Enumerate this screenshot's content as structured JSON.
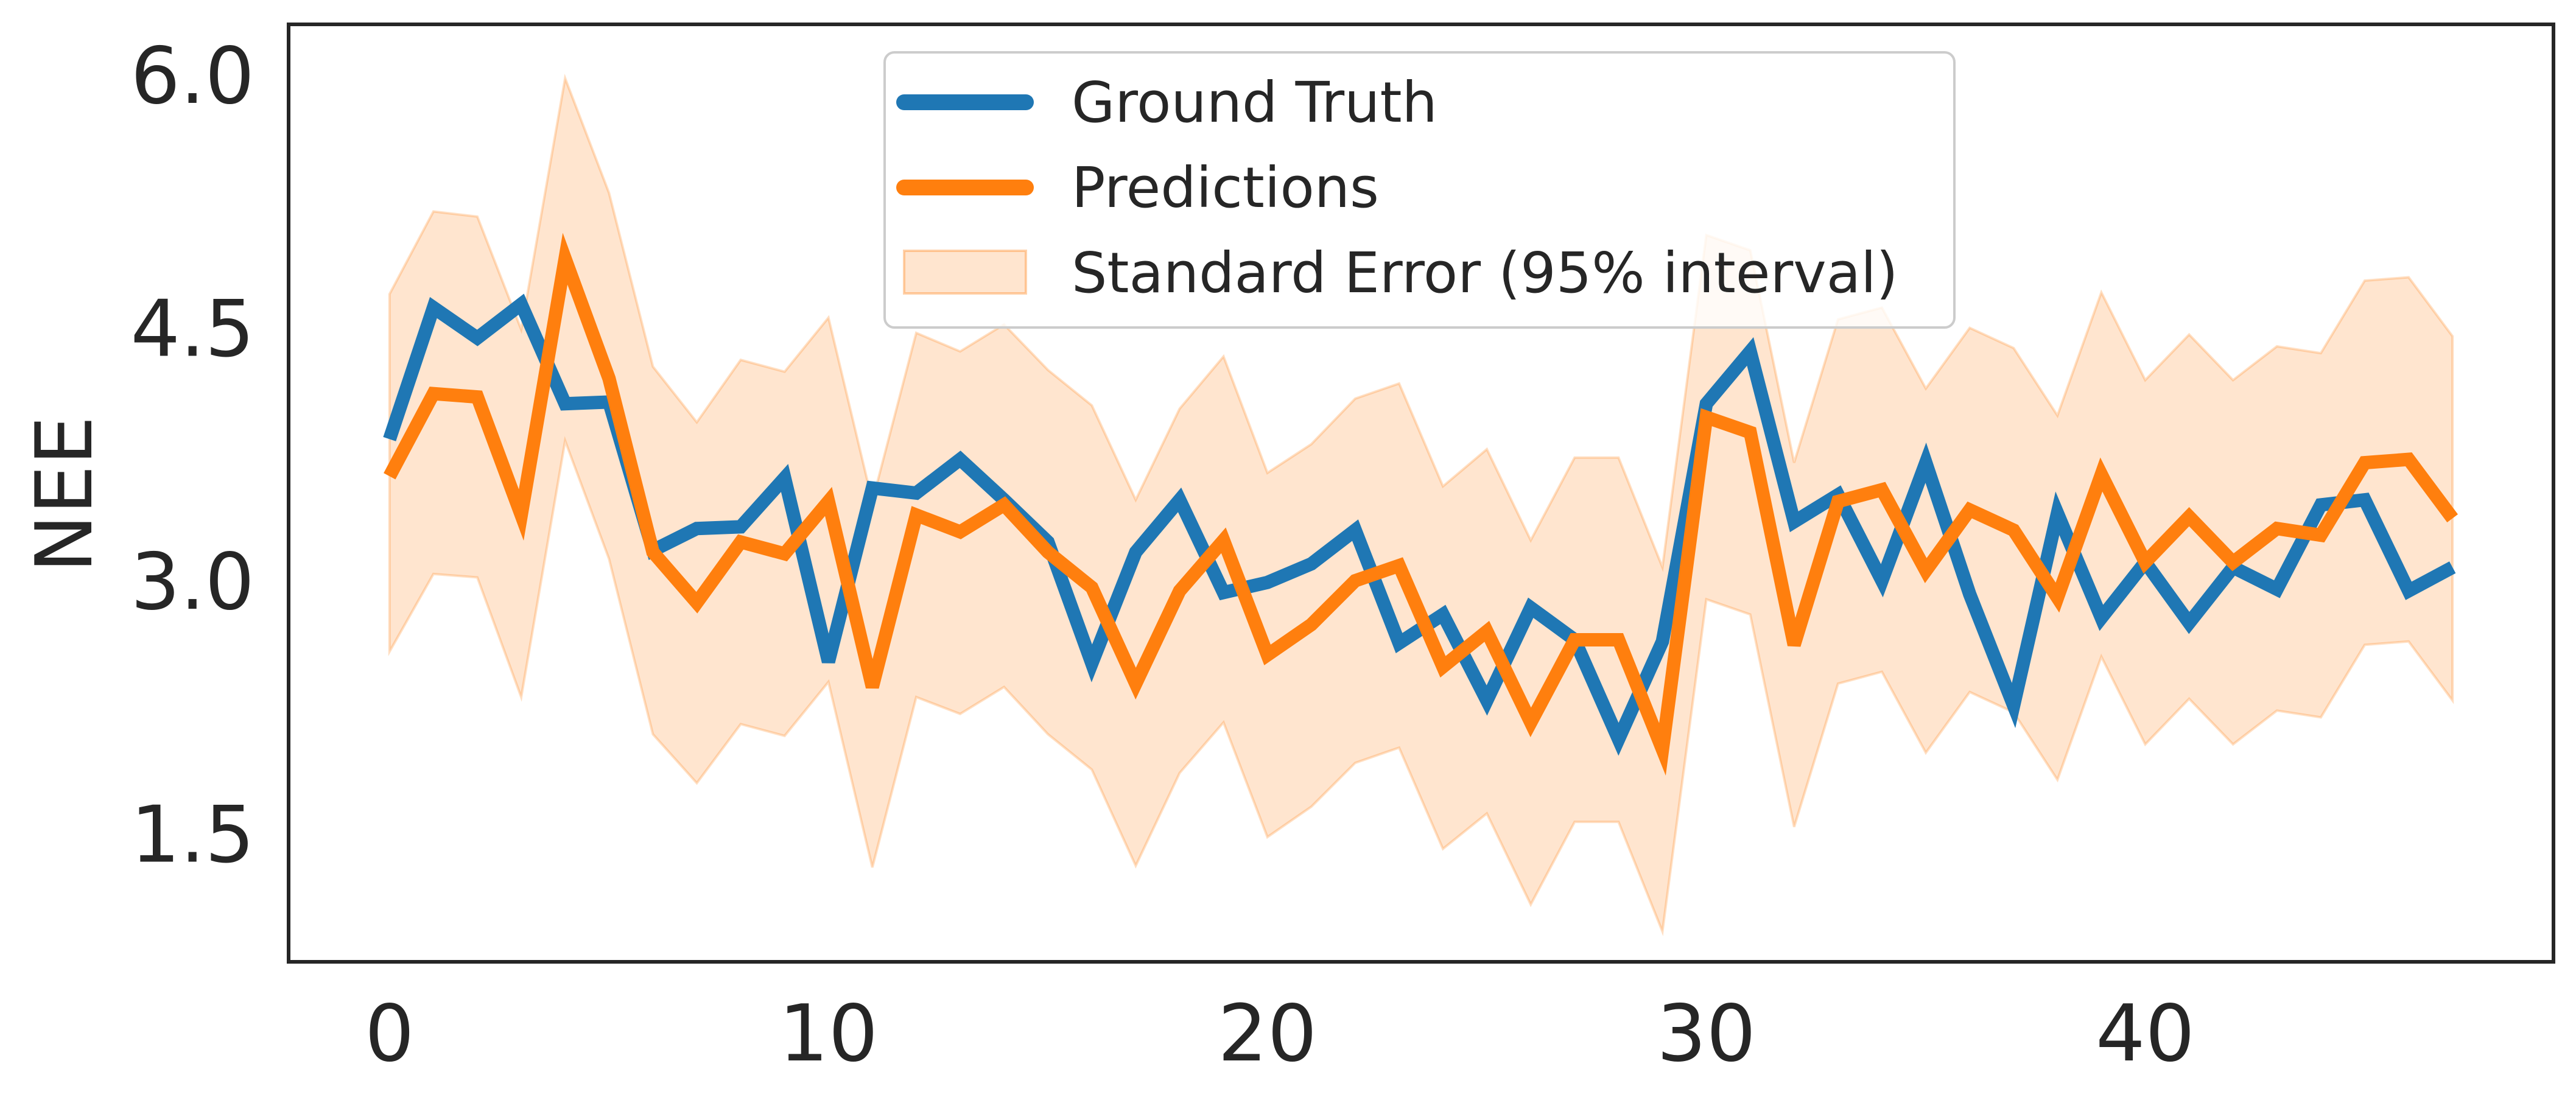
{
  "chart_data": {
    "type": "line",
    "title": "",
    "xlabel": "",
    "ylabel": "NEE",
    "xlim": [
      -2.3,
      49.3
    ],
    "ylim": [
      0.74,
      6.3
    ],
    "xticks": [
      0,
      10,
      20,
      30,
      40
    ],
    "yticks": [
      1.5,
      3.0,
      4.5,
      6.0
    ],
    "xtick_labels": [
      "0",
      "10",
      "20",
      "30",
      "40"
    ],
    "ytick_labels": [
      "1.5",
      "3.0",
      "4.5",
      "6.0"
    ],
    "grid": false,
    "legend_position": "upper-center",
    "x": [
      0,
      1,
      2,
      3,
      4,
      5,
      6,
      7,
      8,
      9,
      10,
      11,
      12,
      13,
      14,
      15,
      16,
      17,
      18,
      19,
      20,
      21,
      22,
      23,
      24,
      25,
      26,
      27,
      28,
      29,
      30,
      31,
      32,
      33,
      34,
      35,
      36,
      37,
      38,
      39,
      40,
      41,
      42,
      43,
      44,
      45,
      46,
      47
    ],
    "series": [
      {
        "name": "Ground Truth",
        "color": "#1f77b4",
        "values": [
          3.84,
          4.62,
          4.44,
          4.64,
          4.05,
          4.06,
          3.18,
          3.31,
          3.32,
          3.61,
          2.52,
          3.55,
          3.52,
          3.72,
          3.48,
          3.23,
          2.51,
          3.17,
          3.48,
          2.93,
          2.99,
          3.1,
          3.3,
          2.63,
          2.8,
          2.29,
          2.84,
          2.65,
          2.06,
          2.64,
          4.05,
          4.36,
          3.35,
          3.51,
          3.0,
          3.7,
          2.92,
          2.26,
          3.4,
          2.78,
          3.11,
          2.75,
          3.08,
          2.95,
          3.45,
          3.48,
          2.94,
          3.08
        ]
      },
      {
        "name": "Predictions",
        "color": "#ff7f0e",
        "values": [
          3.62,
          4.11,
          4.09,
          3.39,
          4.91,
          4.2,
          3.17,
          2.87,
          3.23,
          3.16,
          3.47,
          2.37,
          3.39,
          3.29,
          3.45,
          3.17,
          2.96,
          2.39,
          2.94,
          3.24,
          2.56,
          2.74,
          3.0,
          3.09,
          2.49,
          2.7,
          2.16,
          2.65,
          2.65,
          2.0,
          3.97,
          3.88,
          2.62,
          3.47,
          3.54,
          3.06,
          3.42,
          3.3,
          2.9,
          3.63,
          3.11,
          3.38,
          3.11,
          3.31,
          3.27,
          3.7,
          3.72,
          3.37
        ]
      }
    ],
    "interval": {
      "name": "Standard Error (95% interval)",
      "color": "#ff7f0e",
      "alpha": 0.2,
      "upper": [
        4.7,
        5.19,
        5.16,
        4.49,
        5.98,
        5.3,
        4.27,
        3.94,
        4.31,
        4.24,
        4.56,
        3.47,
        4.47,
        4.36,
        4.52,
        4.25,
        4.04,
        3.48,
        4.02,
        4.33,
        3.64,
        3.81,
        4.08,
        4.17,
        3.56,
        3.78,
        3.24,
        3.73,
        3.73,
        3.08,
        5.05,
        4.96,
        3.7,
        4.55,
        4.62,
        4.14,
        4.5,
        4.38,
        3.98,
        4.71,
        4.19,
        4.46,
        4.19,
        4.39,
        4.35,
        4.78,
        4.8,
        4.45
      ],
      "lower": [
        2.58,
        3.04,
        3.02,
        2.31,
        3.83,
        3.13,
        2.09,
        1.8,
        2.15,
        2.08,
        2.4,
        1.3,
        2.31,
        2.21,
        2.37,
        2.09,
        1.88,
        1.31,
        1.86,
        2.16,
        1.48,
        1.66,
        1.92,
        2.01,
        1.41,
        1.62,
        1.08,
        1.57,
        1.57,
        0.92,
        2.89,
        2.8,
        1.54,
        2.39,
        2.46,
        1.98,
        2.34,
        2.22,
        1.82,
        2.55,
        2.03,
        2.3,
        2.03,
        2.23,
        2.19,
        2.62,
        2.64,
        2.29
      ]
    }
  }
}
